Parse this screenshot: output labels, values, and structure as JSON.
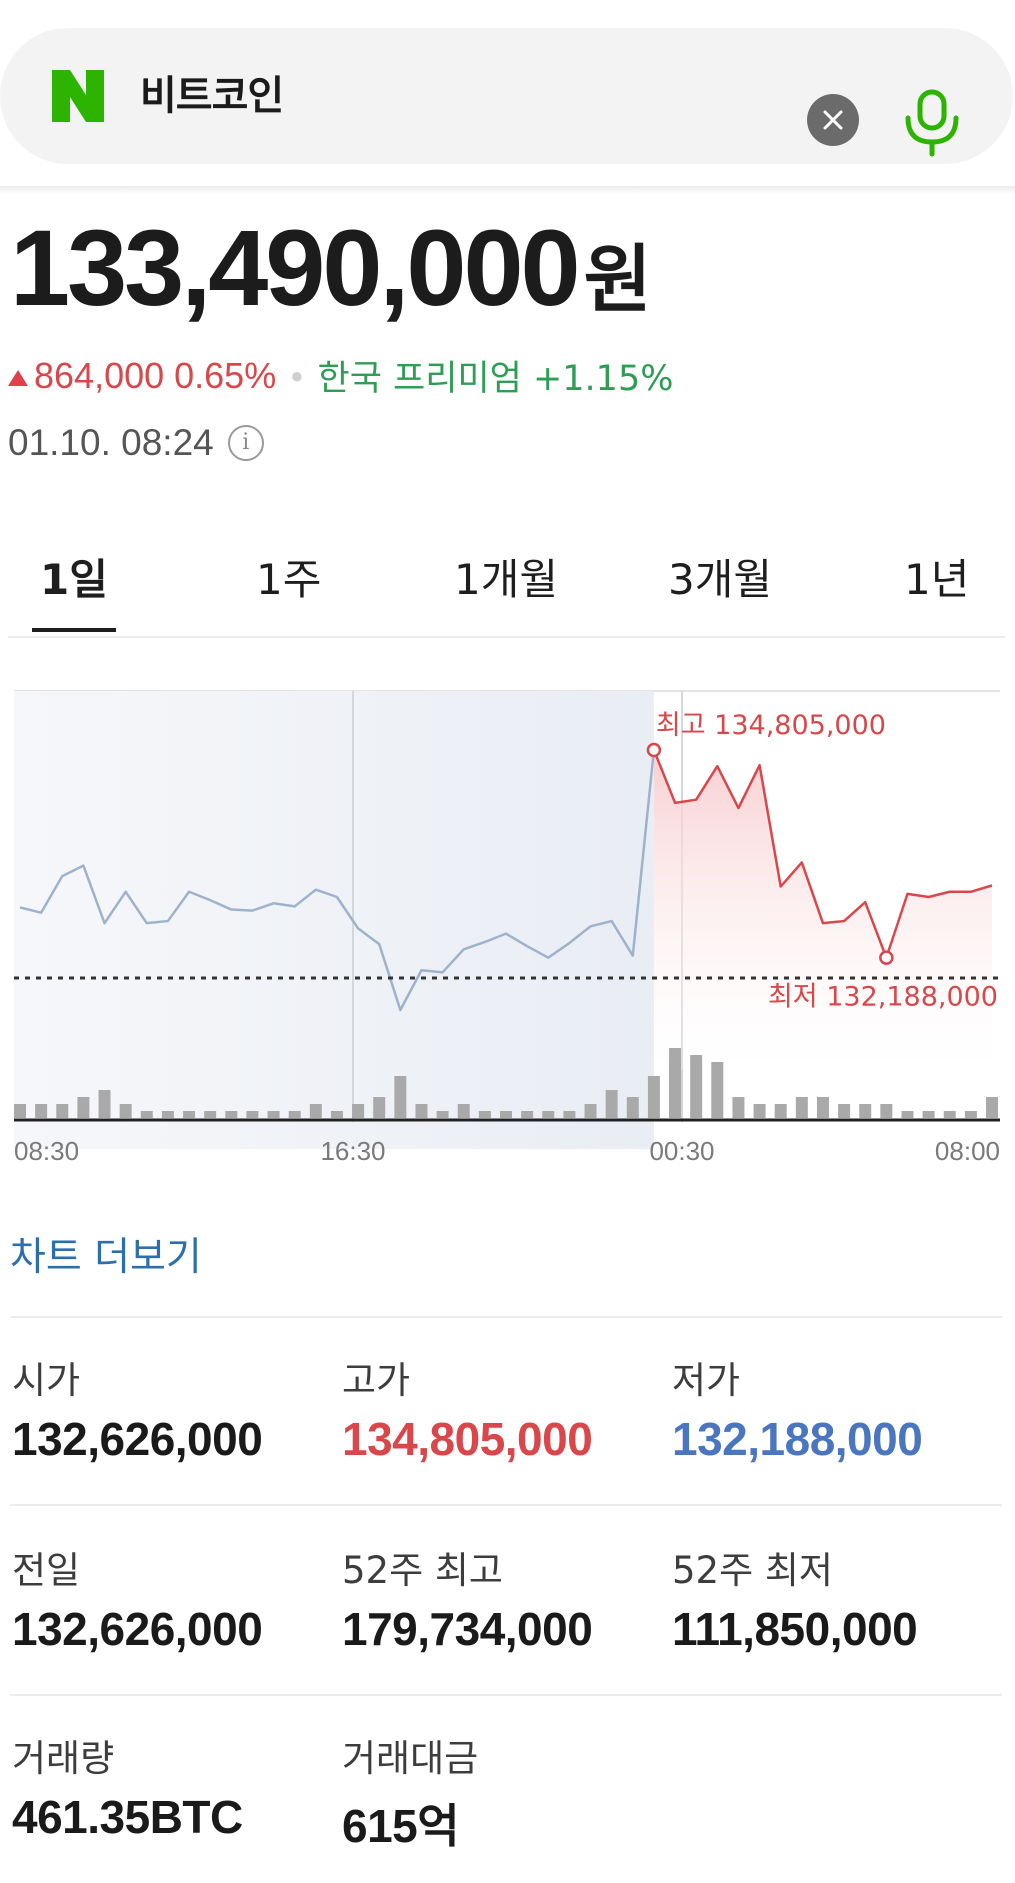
{
  "search": {
    "query": "비트코인"
  },
  "price": {
    "value": "133,490,000",
    "unit": "원",
    "change": "864,000 0.65%",
    "premium": "한국 프리미엄 +1.15%",
    "timestamp": "01.10. 08:24"
  },
  "tabs": [
    {
      "label": "1일",
      "active": true
    },
    {
      "label": "1주",
      "active": false
    },
    {
      "label": "1개월",
      "active": false
    },
    {
      "label": "3개월",
      "active": false
    },
    {
      "label": "1년",
      "active": false
    }
  ],
  "chart_data": {
    "type": "line",
    "x_ticks": [
      "08:30",
      "16:30",
      "00:30",
      "08:00"
    ],
    "series": [
      {
        "values": [
          133300000,
          133250000,
          133600000,
          133700000,
          133150000,
          133450000,
          133150000,
          133170000,
          133450000,
          133370000,
          133280000,
          133270000,
          133340000,
          133310000,
          133470000,
          133400000,
          133100000,
          132950000,
          132320000,
          132700000,
          132680000,
          132900000,
          132970000,
          133050000,
          132930000,
          132820000,
          132960000,
          133120000,
          133170000,
          132840000,
          134805000,
          134300000,
          134330000,
          134650000,
          134250000,
          134660000,
          133500000,
          133730000,
          133150000,
          133170000,
          133350000,
          132820000,
          133430000,
          133400000,
          133450000,
          133450000,
          133510000
        ]
      }
    ],
    "volume": [
      2,
      2,
      2,
      3,
      4,
      2,
      1,
      1,
      1,
      1,
      1,
      1,
      1,
      1,
      2,
      1,
      2,
      3,
      6,
      2,
      1,
      2,
      1,
      1,
      1,
      1,
      1,
      2,
      4,
      3,
      6,
      10,
      9,
      8,
      3,
      2,
      2,
      3,
      3,
      2,
      2,
      2,
      1,
      1,
      1,
      1,
      3
    ],
    "reference_line": 132626000,
    "highlight_split_index": 30,
    "high_label": "최고 134,805,000",
    "low_label": "최저 132,188,000",
    "colors": {
      "before": "#9fb2cc",
      "after": "#d9474b",
      "shade": "#eef1f6"
    },
    "grid": false
  },
  "more_chart": "차트 더보기",
  "stats": [
    {
      "label": "시가",
      "value": "132,626,000",
      "tone": "normal"
    },
    {
      "label": "고가",
      "value": "134,805,000",
      "tone": "red"
    },
    {
      "label": "저가",
      "value": "132,188,000",
      "tone": "blue"
    },
    {
      "label": "전일",
      "value": "132,626,000",
      "tone": "normal"
    },
    {
      "label": "52주 최고",
      "value": "179,734,000",
      "tone": "normal"
    },
    {
      "label": "52주 최저",
      "value": "111,850,000",
      "tone": "normal"
    },
    {
      "label": "거래량",
      "value": "461.35BTC",
      "tone": "normal"
    },
    {
      "label": "거래대금",
      "value": "615억",
      "tone": "normal"
    }
  ]
}
